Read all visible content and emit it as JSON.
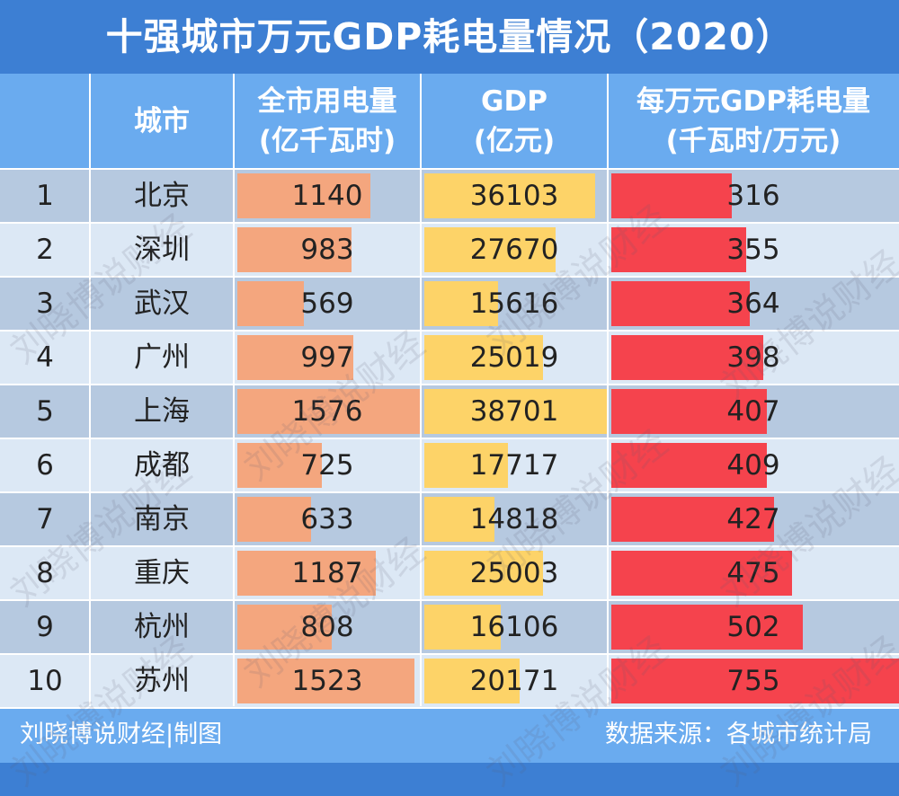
{
  "chart_data": {
    "type": "table",
    "title": "十强城市万元GDP耗电量情况（2020）",
    "columns": [
      {
        "key": "rank",
        "label_1": "",
        "label_2": ""
      },
      {
        "key": "city",
        "label_1": "城市",
        "label_2": ""
      },
      {
        "key": "power",
        "label_1": "全市用电量",
        "label_2": "(亿千瓦时)"
      },
      {
        "key": "gdp",
        "label_1": "GDP",
        "label_2": "(亿元)"
      },
      {
        "key": "intensity",
        "label_1": "每万元GDP耗电量",
        "label_2": "(千瓦时/万元)"
      }
    ],
    "rows": [
      {
        "rank": "1",
        "city": "北京",
        "power": 1140,
        "gdp": 36103,
        "intensity": 316
      },
      {
        "rank": "2",
        "city": "深圳",
        "power": 983,
        "gdp": 27670,
        "intensity": 355
      },
      {
        "rank": "3",
        "city": "武汉",
        "power": 569,
        "gdp": 15616,
        "intensity": 364
      },
      {
        "rank": "4",
        "city": "广州",
        "power": 997,
        "gdp": 25019,
        "intensity": 398
      },
      {
        "rank": "5",
        "city": "上海",
        "power": 1576,
        "gdp": 38701,
        "intensity": 407
      },
      {
        "rank": "6",
        "city": "成都",
        "power": 725,
        "gdp": 17717,
        "intensity": 409
      },
      {
        "rank": "7",
        "city": "南京",
        "power": 633,
        "gdp": 14818,
        "intensity": 427
      },
      {
        "rank": "8",
        "city": "重庆",
        "power": 1187,
        "gdp": 25003,
        "intensity": 475
      },
      {
        "rank": "9",
        "city": "杭州",
        "power": 808,
        "gdp": 16106,
        "intensity": 502
      },
      {
        "rank": "10",
        "city": "苏州",
        "power": 1523,
        "gdp": 20171,
        "intensity": 755
      }
    ]
  },
  "colors": {
    "background": "#3d7fd3",
    "header": "#6aabef",
    "row_odd": "#b6c9e0",
    "row_even": "#dce8f5",
    "power_bar": "#f4a67e",
    "gdp_bar": "#fdd368",
    "intensity_bar": "#f5434d"
  },
  "footer": {
    "credit": "刘晓博说财经|制图",
    "source": "数据来源：各城市统计局"
  },
  "watermark": "刘晓博说财经"
}
